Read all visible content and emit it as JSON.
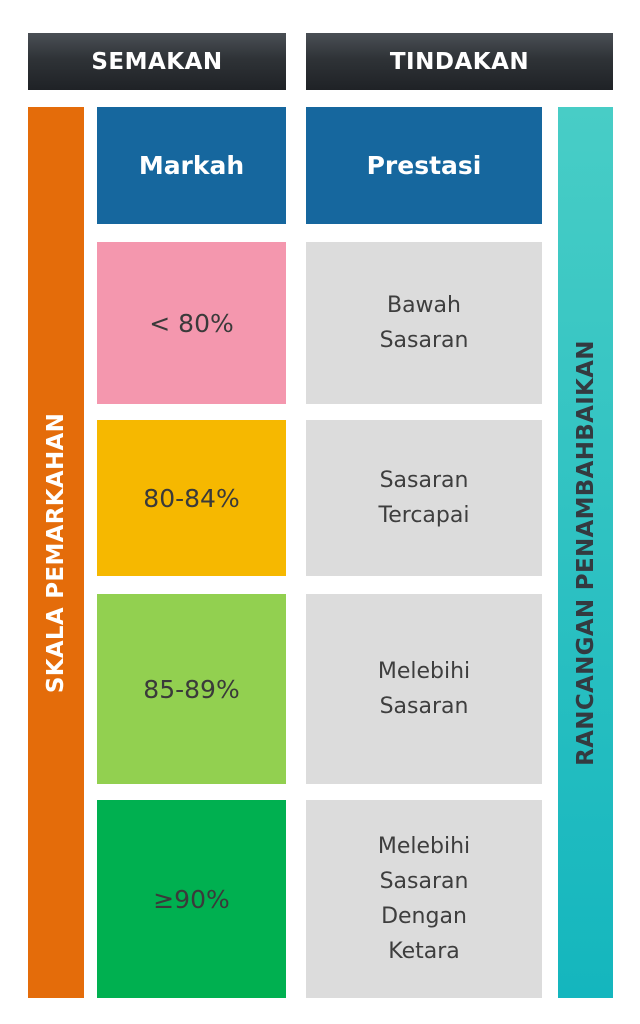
{
  "header": {
    "semakan": "SEMAKAN",
    "tindakan": "TINDAKAN"
  },
  "side": {
    "left": "SKALA PEMARKAHAN",
    "right": "RANCANGAN PENAMBAHBAIKAN"
  },
  "columns": {
    "markah": "Markah",
    "prestasi": "Prestasi"
  },
  "rows": [
    {
      "score": "< 80%",
      "performance": "Bawah\nSasaran",
      "color": "#f497ae"
    },
    {
      "score": "80-84%",
      "performance": "Sasaran\nTercapai",
      "color": "#f6b800"
    },
    {
      "score": "85-89%",
      "performance": "Melebihi\nSasaran",
      "color": "#92d050"
    },
    {
      "score": "≥90%",
      "performance": "Melebihi\nSasaran\nDengan\nKetara",
      "color": "#00b050"
    }
  ],
  "colors": {
    "header_dark": "#2f3337",
    "column_head_blue": "#16679e",
    "left_bar_orange": "#e46c0a",
    "right_bar_teal": "#2ec4c4",
    "performance_gray": "#dcdcdc"
  }
}
